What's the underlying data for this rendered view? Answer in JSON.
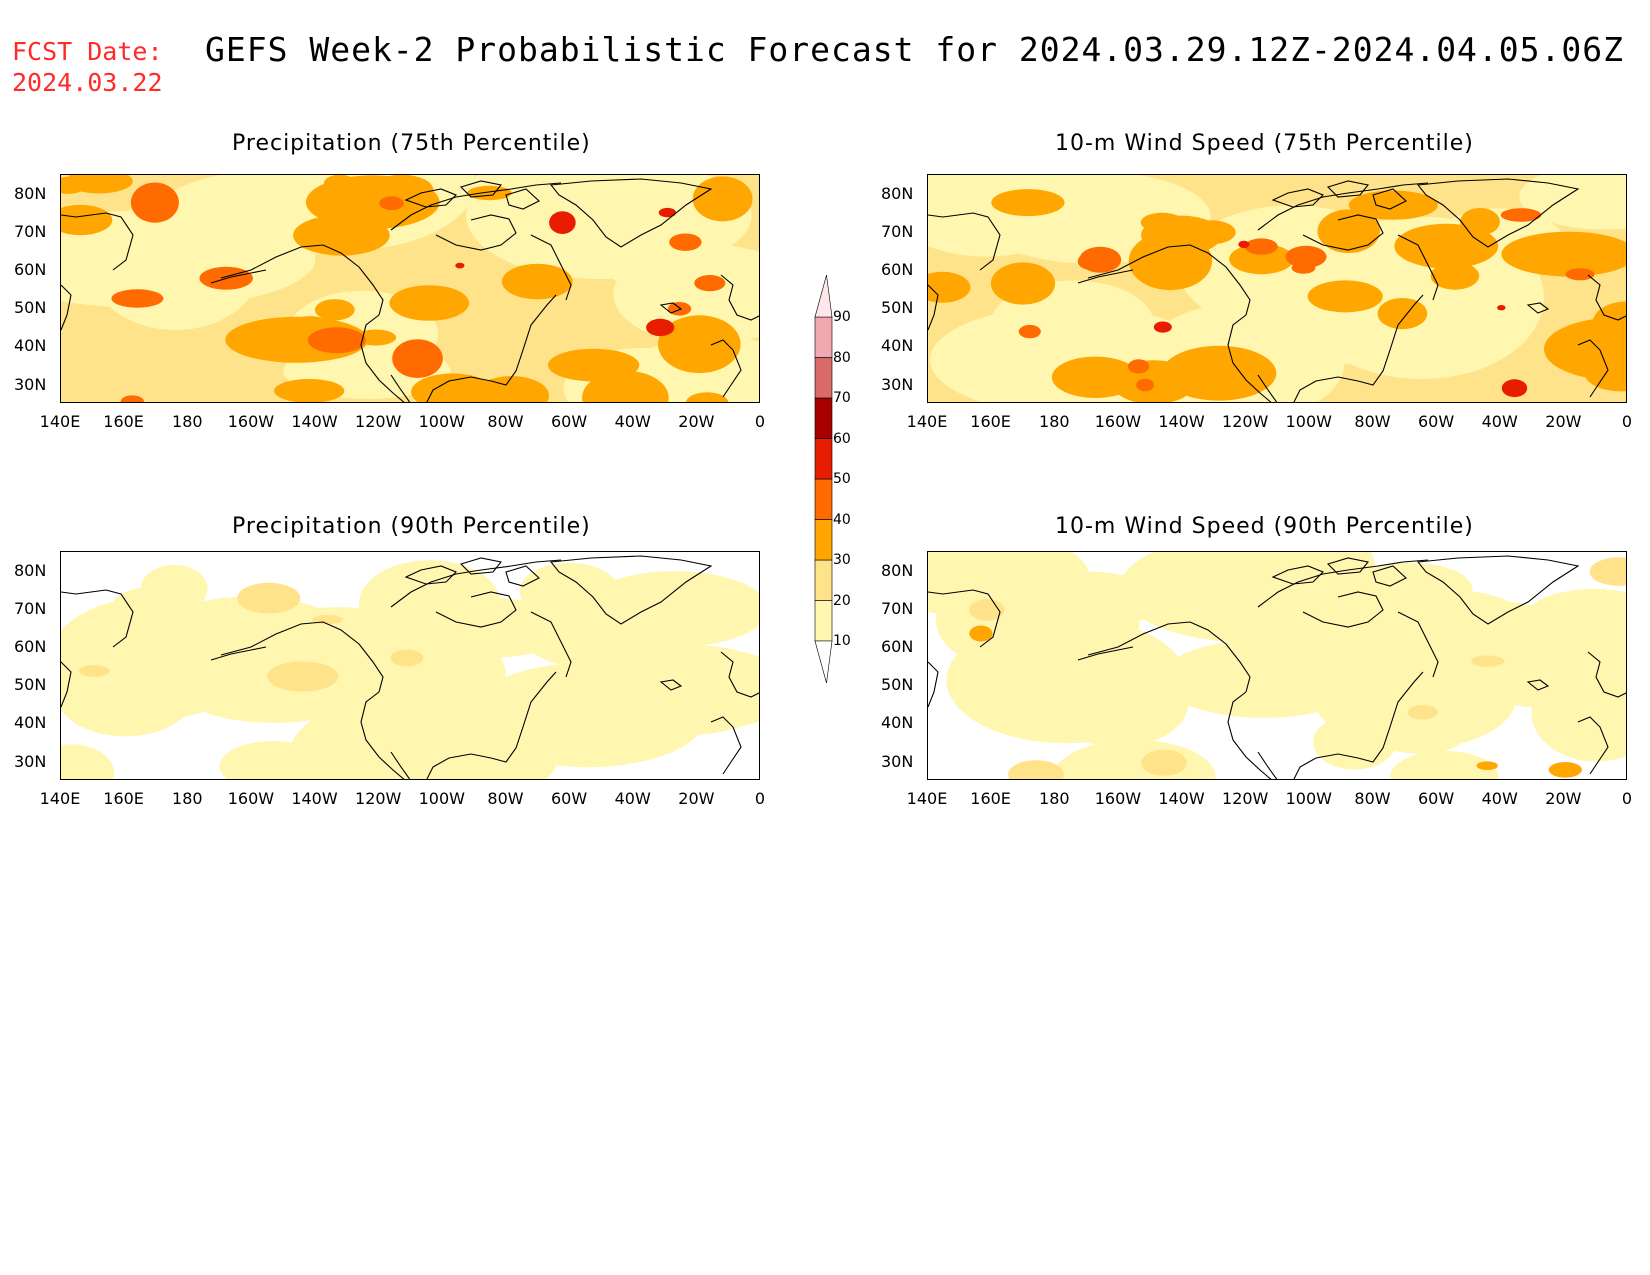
{
  "fcst_date": {
    "label": "FCST Date:",
    "value": "2024.03.22"
  },
  "title": "GEFS Week-2 Probabilistic Forecast for 2024.03.29.12Z-2024.04.05.06Z",
  "lat_labels": [
    "80N",
    "70N",
    "60N",
    "50N",
    "40N",
    "30N"
  ],
  "lon_labels": [
    "140E",
    "160E",
    "180",
    "160W",
    "140W",
    "120W",
    "100W",
    "80W",
    "60W",
    "40W",
    "20W",
    "0"
  ],
  "panels": [
    {
      "title": "Precipitation (75th Percentile)",
      "intensity": "high",
      "variable": "precip"
    },
    {
      "title": "10-m Wind Speed (75th Percentile)",
      "intensity": "high",
      "variable": "wind"
    },
    {
      "title": "Precipitation (90th Percentile)",
      "intensity": "low",
      "variable": "precip"
    },
    {
      "title": "10-m Wind Speed (90th Percentile)",
      "intensity": "low",
      "variable": "wind"
    }
  ],
  "legend": {
    "levels": [
      "10",
      "20",
      "30",
      "40",
      "50",
      "60",
      "70",
      "80",
      "90"
    ],
    "colors": [
      "#fff6b0",
      "#ffe38a",
      "#ffa700",
      "#ff6b00",
      "#e81c00",
      "#a80000",
      "#d86a6a",
      "#f2a8b0",
      "#ffe6ea"
    ]
  }
}
